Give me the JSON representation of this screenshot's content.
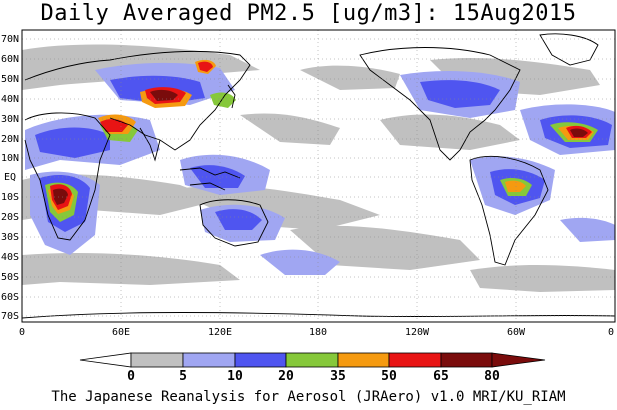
{
  "title": "Daily Averaged PM2.5 [ug/m3]: 15Aug2015",
  "caption": "The Japanese Reanalysis for Aerosol (JRAero) v1.0 MRI/KU_RIAM",
  "lat_ticks": [
    "70N",
    "60N",
    "50N",
    "40N",
    "30N",
    "20N",
    "10N",
    "EQ",
    "10S",
    "20S",
    "30S",
    "40S",
    "50S",
    "60S",
    "70S"
  ],
  "lon_ticks": [
    "0",
    "60E",
    "120E",
    "180",
    "120W",
    "60W",
    "0"
  ],
  "colorbar": {
    "labels": [
      "0",
      "5",
      "10",
      "20",
      "35",
      "50",
      "65",
      "80"
    ],
    "colors": [
      "#ffffff",
      "#c0c0c0",
      "#a0a6f2",
      "#4f55f0",
      "#86c83a",
      "#f59a10",
      "#e81414",
      "#7a0c0c"
    ]
  },
  "map_colors": {
    "ocean": "#ffffff",
    "coast": "#000000",
    "grid": "#888888"
  }
}
